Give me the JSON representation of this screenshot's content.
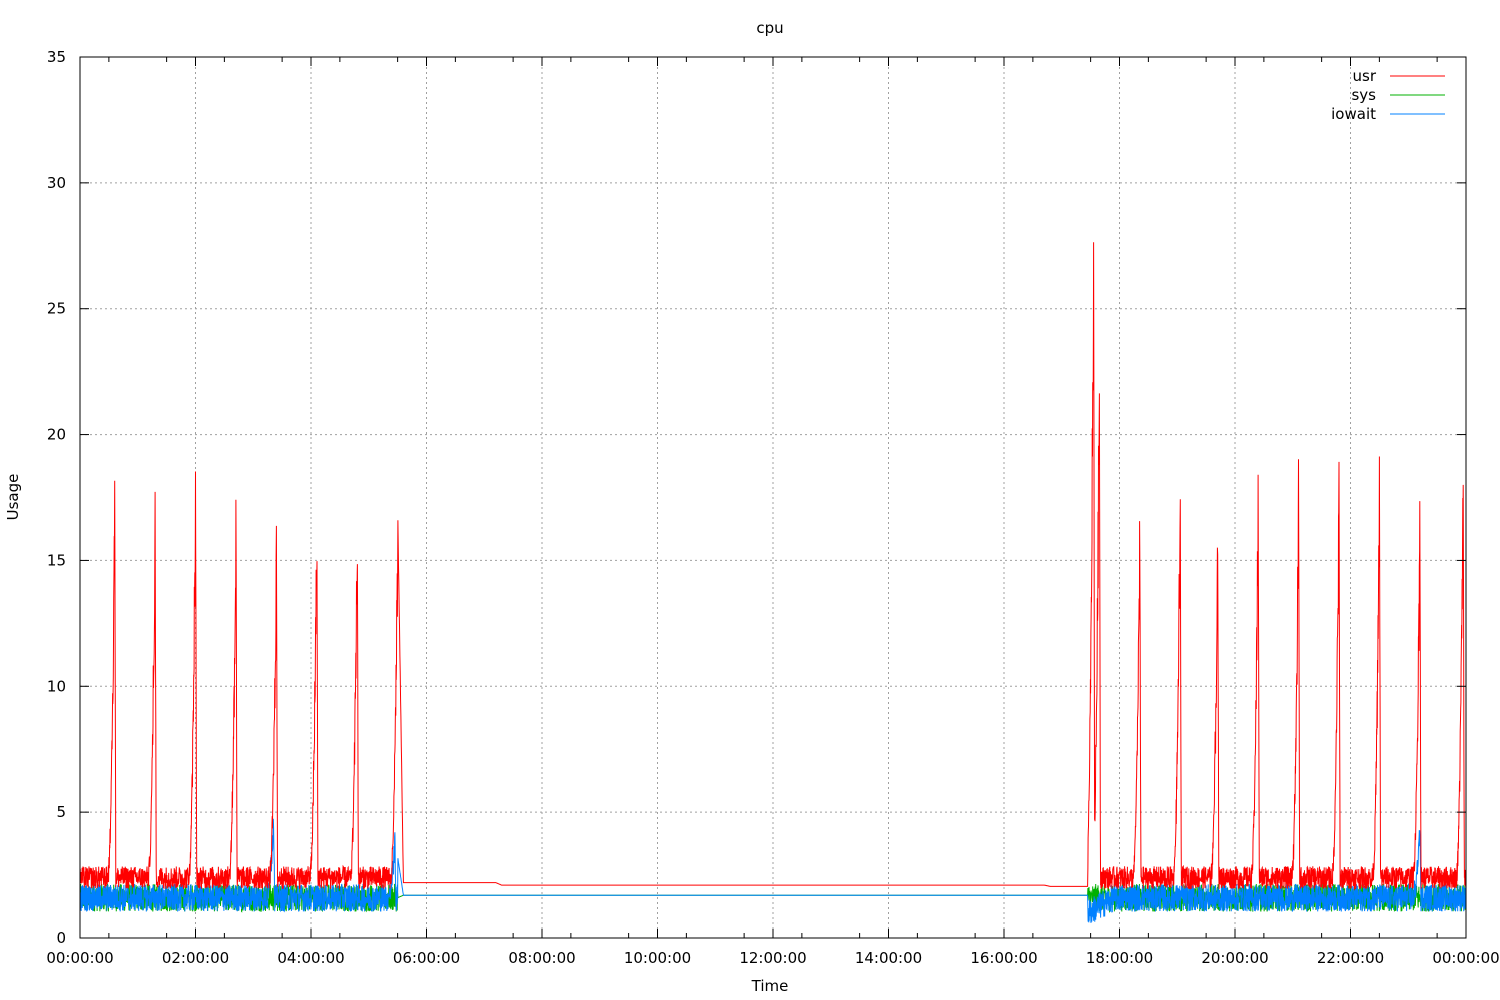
{
  "chart_data": {
    "type": "line",
    "title": "cpu",
    "xlabel": "Time",
    "ylabel": "Usage",
    "xlim": [
      "00:00:00",
      "24:00:00"
    ],
    "ylim": [
      0,
      35
    ],
    "grid": true,
    "legend_position": "top-right",
    "x_ticks": [
      "00:00:00",
      "02:00:00",
      "04:00:00",
      "06:00:00",
      "08:00:00",
      "10:00:00",
      "12:00:00",
      "14:00:00",
      "16:00:00",
      "18:00:00",
      "20:00:00",
      "22:00:00",
      "00:00:00"
    ],
    "x_tick_hours": [
      0,
      2,
      4,
      6,
      8,
      10,
      12,
      14,
      16,
      18,
      20,
      22,
      24
    ],
    "y_ticks": [
      0,
      5,
      10,
      15,
      20,
      25,
      30,
      35
    ],
    "series": [
      {
        "name": "usr",
        "color": "#ff0000",
        "baseline": 2.4,
        "points": [
          [
            0,
            2.3
          ],
          [
            0.6,
            18.6
          ],
          [
            1.3,
            17.3
          ],
          [
            2.0,
            18.6
          ],
          [
            2.7,
            17.6
          ],
          [
            3.4,
            16.4
          ],
          [
            4.1,
            17.9
          ],
          [
            4.8,
            17.5
          ],
          [
            5.5,
            17.2
          ],
          [
            5.6,
            2.2
          ],
          [
            7.2,
            2.2
          ],
          [
            7.3,
            2.1
          ],
          [
            16.7,
            2.1
          ],
          [
            16.8,
            2.05
          ],
          [
            17.45,
            2.05
          ],
          [
            17.55,
            30.0
          ],
          [
            17.65,
            24.2
          ],
          [
            18.35,
            16.9
          ],
          [
            19.05,
            18.6
          ],
          [
            19.7,
            16.6
          ],
          [
            20.4,
            18.7
          ],
          [
            21.1,
            18.6
          ],
          [
            21.8,
            18.8
          ],
          [
            22.5,
            19.0
          ],
          [
            23.2,
            17.6
          ],
          [
            23.95,
            19.6
          ],
          [
            24.0,
            2.5
          ]
        ]
      },
      {
        "name": "sys",
        "color": "#00b000",
        "baseline": 1.6,
        "points": [
          [
            0,
            1.6
          ],
          [
            5.5,
            1.6
          ],
          [
            5.6,
            1.7
          ],
          [
            17.45,
            1.7
          ],
          [
            24.0,
            1.6
          ]
        ]
      },
      {
        "name": "iowait",
        "color": "#0080ff",
        "baseline": 1.6,
        "points": [
          [
            0,
            1.6
          ],
          [
            3.35,
            5.3
          ],
          [
            5.45,
            4.0
          ],
          [
            5.6,
            1.7
          ],
          [
            17.45,
            1.7
          ],
          [
            17.7,
            0.7
          ],
          [
            23.2,
            4.8
          ],
          [
            24.0,
            1.6
          ]
        ]
      }
    ]
  }
}
